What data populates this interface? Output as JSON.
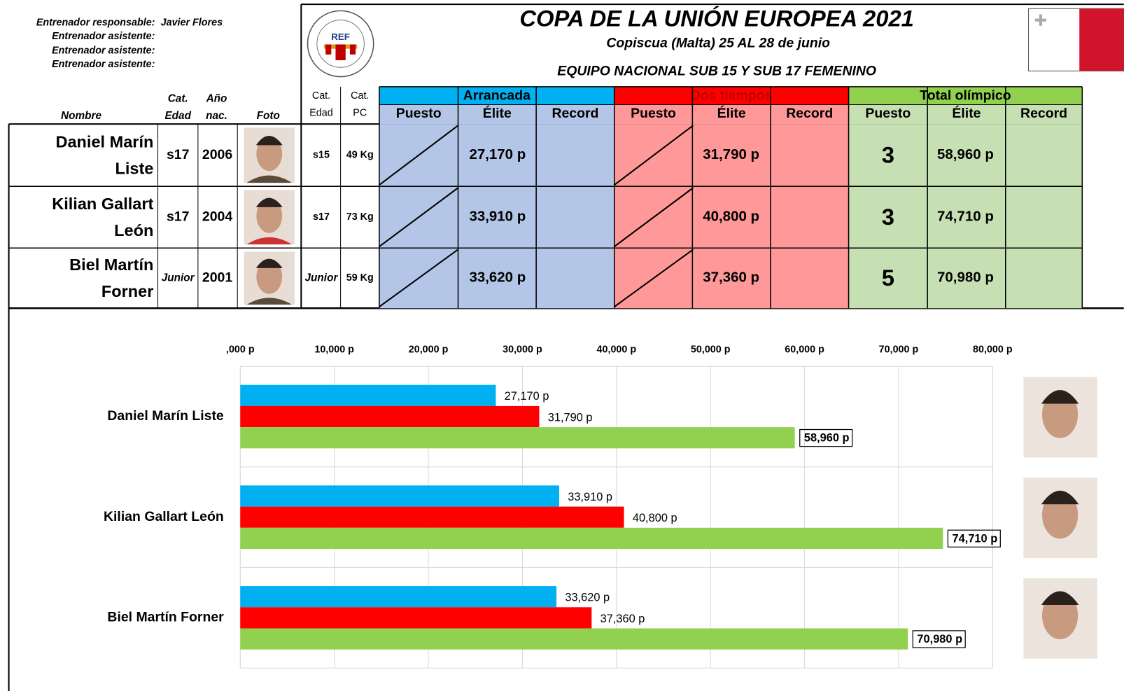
{
  "header": {
    "coaches": [
      {
        "role": "Entrenador responsable:",
        "name": "Javier Flores"
      },
      {
        "role": "Entrenador asistente:"
      },
      {
        "role": "Entrenador asistente:"
      },
      {
        "role": "Entrenador asistente:"
      }
    ],
    "logo_text": "REF",
    "title": "COPA DE LA UNIÓN EUROPEA 2021",
    "subtitle": "Copiscua (Malta) 25 AL 28 de junio",
    "team": "EQUIPO NACIONAL SUB 15 Y SUB 17 FEMENINO"
  },
  "table": {
    "columns": [
      [
        "Nombre"
      ],
      [
        "Cat.",
        "Edad"
      ],
      [
        "Año",
        "nac."
      ],
      [
        "Foto"
      ],
      [
        "Cat.",
        "Edad"
      ],
      [
        "Cat.",
        "PC"
      ]
    ],
    "groups": [
      {
        "title": "Arrancada",
        "subheaders": [
          "Puesto",
          "Élite",
          "Record"
        ]
      },
      {
        "title": "Dos tiempos",
        "subheaders": [
          "Puesto",
          "Élite",
          "Record"
        ]
      },
      {
        "title": "Total olímpico",
        "subheaders": [
          "Puesto",
          "Élite",
          "Record"
        ]
      }
    ],
    "rows": [
      {
        "name": [
          "Daniel Marín",
          "Liste"
        ],
        "cat_edad": "s17",
        "year": "2006",
        "cat_comp": "s15",
        "cat_pc": "49 Kg",
        "arrancada": "27,170 p",
        "dos_tiempos": "31,790 p",
        "total_puesto": "3",
        "total": "58,960 p"
      },
      {
        "name": [
          "Kilian Gallart",
          "León"
        ],
        "cat_edad": "s17",
        "year": "2004",
        "cat_comp": "s17",
        "cat_pc": "73 Kg",
        "arrancada": "33,910 p",
        "dos_tiempos": "40,800 p",
        "total_puesto": "3",
        "total": "74,710 p"
      },
      {
        "name": [
          "Biel Martín",
          "Forner"
        ],
        "cat_edad": "Junior",
        "year": "2001",
        "cat_comp": "Junior",
        "cat_pc": "59 Kg",
        "arrancada": "33,620 p",
        "dos_tiempos": "37,360 p",
        "total_puesto": "5",
        "total": "70,980 p"
      }
    ]
  },
  "chart_data": {
    "type": "bar",
    "orientation": "horizontal",
    "categories": [
      "Daniel Marín Liste",
      "Kilian Gallart León",
      "Biel Martín Forner"
    ],
    "series": [
      {
        "color": "#00b0f0",
        "values": [
          27170,
          33910,
          33620
        ],
        "value_labels": [
          "27,170 p",
          "33,910 p",
          "33,620 p"
        ]
      },
      {
        "color": "#ff0000",
        "values": [
          31790,
          40800,
          37360
        ],
        "value_labels": [
          "31,790 p",
          "40,800 p",
          "37,360 p"
        ]
      },
      {
        "color": "#92d050",
        "values": [
          58960,
          74710,
          70980
        ],
        "value_labels": [
          "58,960 p",
          "74,710 p",
          "70,980 p"
        ],
        "label_box": true
      }
    ],
    "xlim": [
      0,
      80000
    ],
    "xticks": [
      {
        "value": 0,
        "label": ",000 p"
      },
      {
        "value": 10000,
        "label": "10,000 p"
      },
      {
        "value": 20000,
        "label": "20,000 p"
      },
      {
        "value": 30000,
        "label": "30,000 p"
      },
      {
        "value": 40000,
        "label": "40,000 p"
      },
      {
        "value": 50000,
        "label": "50,000 p"
      },
      {
        "value": 60000,
        "label": "60,000 p"
      },
      {
        "value": 70000,
        "label": "70,000 p"
      },
      {
        "value": 80000,
        "label": "80,000 p"
      }
    ],
    "grid": true
  }
}
